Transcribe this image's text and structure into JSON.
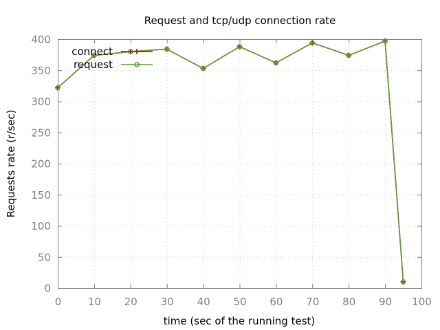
{
  "chart_data": {
    "type": "line",
    "title": "Request and tcp/udp connection rate",
    "xlabel": "time (sec of the running test)",
    "ylabel": "Requests rate (r/sec)",
    "xlim": [
      0,
      100
    ],
    "ylim": [
      0,
      400
    ],
    "xticks": [
      0,
      10,
      20,
      30,
      40,
      50,
      60,
      70,
      80,
      90,
      100
    ],
    "yticks": [
      0,
      50,
      100,
      150,
      200,
      250,
      300,
      350,
      400
    ],
    "grid": true,
    "legend_position": "top-left",
    "series": [
      {
        "name": "connect",
        "color": "#8b1a0e",
        "marker": "plus",
        "x": [
          0,
          10,
          20,
          30,
          40,
          50,
          60,
          70,
          80,
          90,
          95
        ],
        "y": [
          322,
          374,
          380,
          384,
          353,
          388,
          362,
          394,
          374,
          397,
          10
        ]
      },
      {
        "name": " request",
        "color": "#5e9c36",
        "marker": "circle",
        "x": [
          0,
          10,
          20,
          30,
          40,
          50,
          60,
          70,
          80,
          90,
          95
        ],
        "y": [
          322,
          374,
          380,
          384,
          353,
          388,
          362,
          394,
          374,
          397,
          10
        ]
      }
    ]
  }
}
